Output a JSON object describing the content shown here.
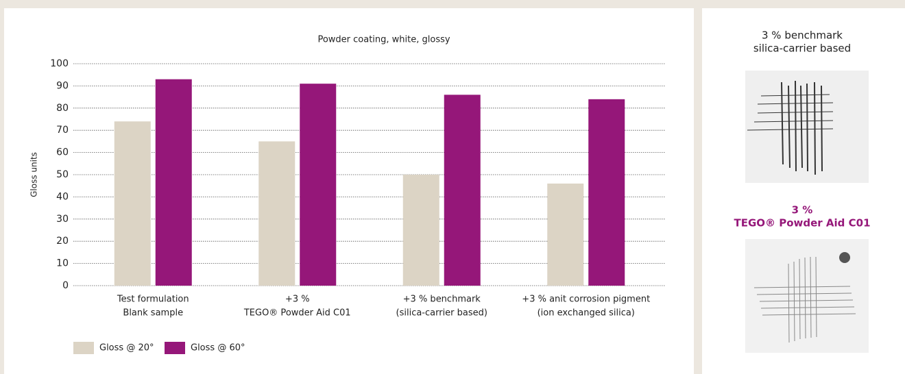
{
  "chart_data": {
    "type": "bar",
    "title": "Powder coating, white, glossy",
    "y_label": "Gloss units",
    "categories": [
      [
        "Test formulation",
        "Blank sample"
      ],
      [
        "+3 %",
        "TEGO® Powder Aid C01"
      ],
      [
        "+3 % benchmark",
        "(silica-carrier based)"
      ],
      [
        "+3 % anit corrosion pigment",
        "(ion exchanged silica)"
      ]
    ],
    "series": [
      {
        "name": "Gloss @ 20°",
        "color": "#dcd4c5",
        "values": [
          74,
          65,
          50,
          46
        ]
      },
      {
        "name": "Gloss @ 60°",
        "color": "#951779",
        "values": [
          93,
          91,
          86,
          84
        ]
      }
    ],
    "ylim": [
      0,
      100
    ],
    "yticks": [
      0,
      10,
      20,
      30,
      40,
      50,
      60,
      70,
      80,
      90,
      100
    ],
    "grid": true
  },
  "side_panel": {
    "captions": [
      {
        "lines": [
          "3 % benchmark",
          "silica-carrier based"
        ],
        "color": "#222222"
      },
      {
        "lines": [
          "3 %",
          "TEGO® Powder Aid C01"
        ],
        "color": "#951779"
      }
    ]
  }
}
